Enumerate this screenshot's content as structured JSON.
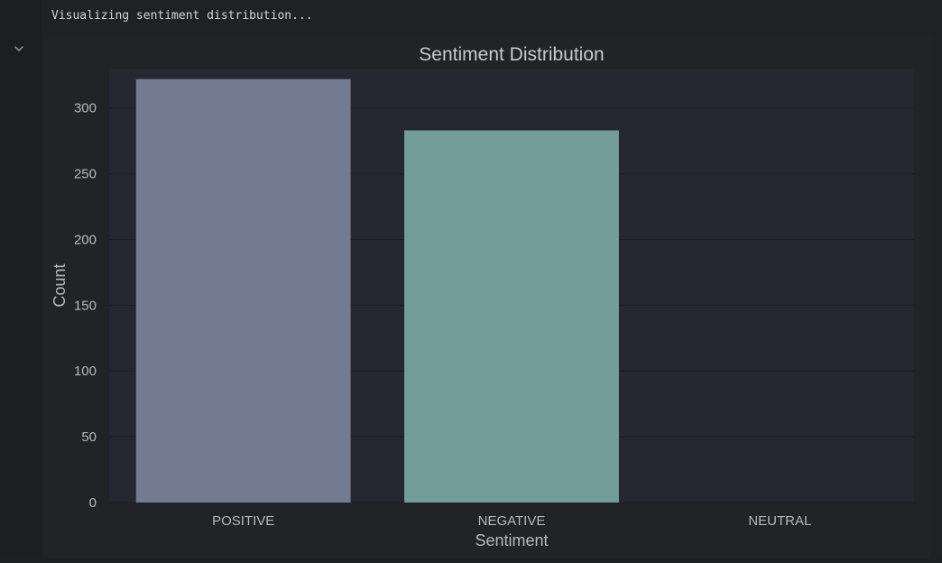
{
  "cell": {
    "stdout": "Visualizing sentiment distribution...",
    "toggle_icon": "chevron-down-icon"
  },
  "colors": {
    "page_bg": "#1f2023",
    "plot_bg": "#262730",
    "grid": "#1c1d22",
    "text": "#b8b8b8",
    "title": "#c9c9c9",
    "bar_positive": "#737b93",
    "bar_negative": "#729d9b"
  },
  "chart_data": {
    "type": "bar",
    "title": "Sentiment Distribution",
    "xlabel": "Sentiment",
    "ylabel": "Count",
    "categories": [
      "POSITIVE",
      "NEGATIVE",
      "NEUTRAL"
    ],
    "values": [
      322,
      283,
      0
    ],
    "bar_colors": [
      "#737b93",
      "#729d9b",
      "#6a8c8a"
    ],
    "ylim": [
      0,
      330
    ],
    "yticks": [
      0,
      50,
      100,
      150,
      200,
      250,
      300
    ],
    "grid": true,
    "legend": "none"
  }
}
